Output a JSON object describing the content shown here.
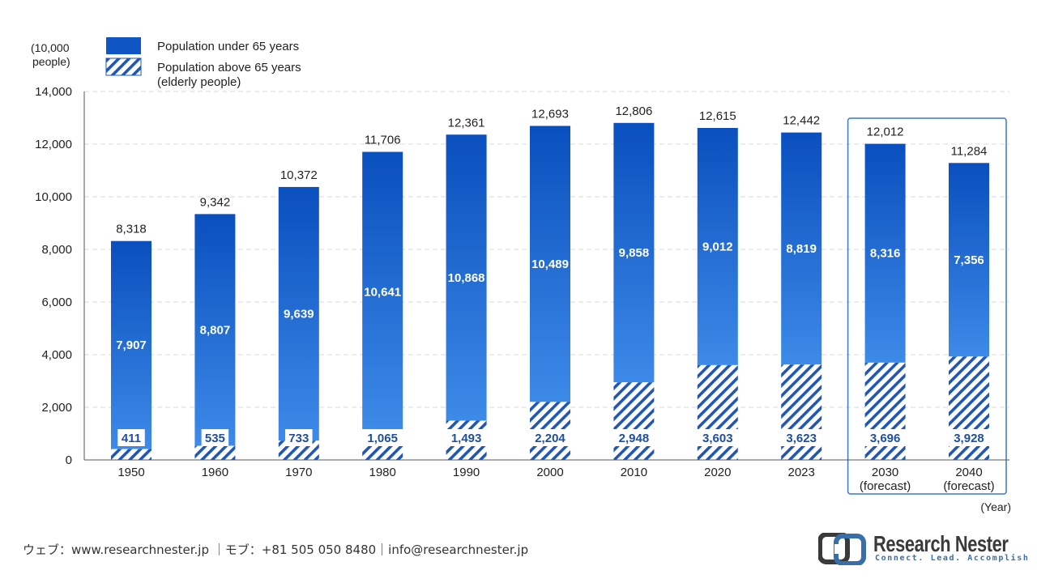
{
  "chart_data": {
    "type": "bar",
    "stacked": true,
    "title": "",
    "ylabel": "(10,000 people)",
    "ylabel_lines": [
      "(10,000",
      "people)"
    ],
    "xlabel": "(Year)",
    "ylim": [
      0,
      14000
    ],
    "yticks": [
      0,
      2000,
      4000,
      6000,
      8000,
      10000,
      12000,
      14000
    ],
    "ytick_labels": [
      "0",
      "2,000",
      "4,000",
      "6,000",
      "8,000",
      "10,000",
      "12,000",
      "14,000"
    ],
    "grid": true,
    "legend_position": "top-left",
    "categories": [
      "1950",
      "1960",
      "1970",
      "1980",
      "1990",
      "2000",
      "2010",
      "2020",
      "2023",
      "2030",
      "2040"
    ],
    "category_sublabels": [
      "",
      "",
      "",
      "",
      "",
      "",
      "",
      "",
      "",
      "(forecast)",
      "(forecast)"
    ],
    "forecast_highlight": [
      "2030",
      "2040"
    ],
    "series": [
      {
        "name": "Population above 65 years (elderly people)",
        "legend_lines": [
          "Population above 65 years",
          "(elderly people)"
        ],
        "pattern": "hatched",
        "color": "#1f56b8",
        "values": [
          411,
          535,
          733,
          1065,
          1493,
          2204,
          2948,
          3603,
          3623,
          3696,
          3928
        ],
        "labels": [
          "411",
          "535",
          "733",
          "1,065",
          "1,493",
          "2,204",
          "2,948",
          "3,603",
          "3,623",
          "3,696",
          "3,928"
        ]
      },
      {
        "name": "Population under 65 years",
        "legend_lines": [
          "Population under 65 years"
        ],
        "pattern": "solid",
        "color": "#0f55c4",
        "values": [
          7907,
          8807,
          9639,
          10641,
          10868,
          10489,
          9858,
          9012,
          8819,
          8316,
          7356
        ],
        "labels": [
          "7,907",
          "8,807",
          "9,639",
          "10,641",
          "10,868",
          "10,489",
          "9,858",
          "9,012",
          "8,819",
          "8,316",
          "7,356"
        ]
      }
    ],
    "totals": [
      8318,
      9342,
      10372,
      11706,
      12361,
      12693,
      12806,
      12615,
      12442,
      12012,
      11284
    ],
    "total_labels": [
      "8,318",
      "9,342",
      "10,372",
      "11,706",
      "12,361",
      "12,693",
      "12,806",
      "12,615",
      "12,442",
      "12,012",
      "11,284"
    ]
  },
  "footer": {
    "contact": "ウェブ：www.researchnester.jp ｜モブ：+81 505 050 8480｜info@researchnester.jp"
  },
  "logo": {
    "name": "Research Nester",
    "tagline": "Connect. Lead. Accomplish",
    "icon": "research-nester-logo-icon"
  },
  "colors": {
    "bar_top": "#0a4fbe",
    "bar_bottom": "#3a86e6",
    "hatch": "#1f56b8",
    "forecast_box": "#3a78c2",
    "grid": "#d9d9d9",
    "text": "#222222"
  }
}
